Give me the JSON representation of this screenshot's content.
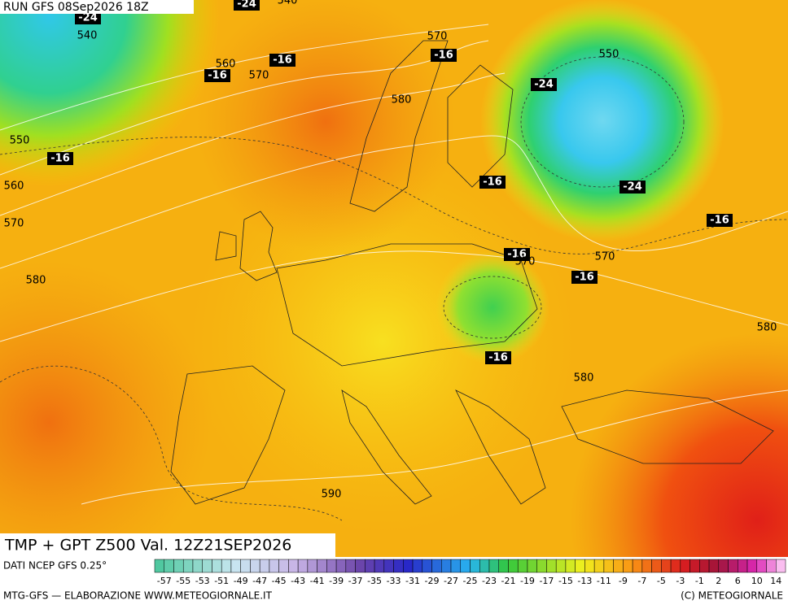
{
  "header": {
    "run": "RUN GFS 08Sep2026 18Z"
  },
  "map_labels": [
    "-24",
    "540",
    "-24",
    "540",
    "570",
    "-16",
    "560",
    "-16",
    "-16",
    "570",
    "580",
    "550",
    "-24",
    "550",
    "-16",
    "-16",
    "-24",
    "560",
    "570",
    "-16",
    "-16",
    "570",
    "570",
    "-16",
    "580",
    "580",
    "-16",
    "580",
    "590"
  ],
  "footer": {
    "title": "TMP + GPT Z500 Val. 12Z21SEP2026",
    "source": "DATI NCEP GFS 0.25°",
    "credit": "MTG-GFS — ELABORAZIONE WWW.METEOGIORNALE.IT",
    "copyright": "(C) METEOGIORNALE"
  },
  "colorbar_labels": [
    "-57",
    "-55",
    "-53",
    "-51",
    "-49",
    "-47",
    "-45",
    "-43",
    "-41",
    "-39",
    "-37",
    "-35",
    "-33",
    "-31",
    "-29",
    "-27",
    "-25",
    "-23",
    "-21",
    "-19",
    "-17",
    "-15",
    "-13",
    "-11",
    "-9",
    "-7",
    "-5",
    "-3",
    "-1",
    "2",
    "6",
    "10",
    "14"
  ]
}
